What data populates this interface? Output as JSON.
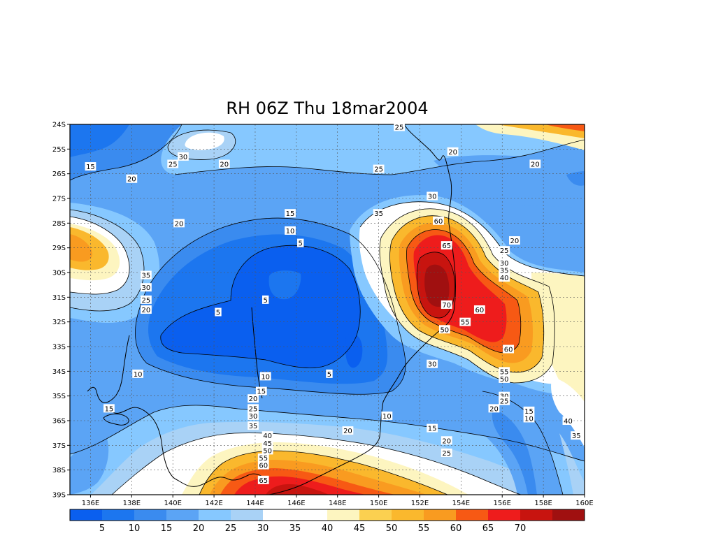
{
  "title": "RH 06Z Thu 18mar2004",
  "map": {
    "lat_ticks": [
      "24S",
      "25S",
      "26S",
      "27S",
      "28S",
      "29S",
      "30S",
      "31S",
      "32S",
      "33S",
      "34S",
      "35S",
      "36S",
      "37S",
      "38S",
      "39S"
    ],
    "lon_ticks": [
      "136E",
      "138E",
      "140E",
      "142E",
      "144E",
      "146E",
      "148E",
      "150E",
      "152E",
      "154E",
      "156E",
      "158E",
      "160E"
    ],
    "lon_range": [
      135,
      160
    ],
    "lat_range": [
      -24,
      -39
    ],
    "grid": true,
    "contour_labels": [
      {
        "text": "25",
        "lon": 151,
        "lat": -24.1
      },
      {
        "text": "20",
        "lon": 153.6,
        "lat": -25.1
      },
      {
        "text": "20",
        "lon": 157.6,
        "lat": -25.6
      },
      {
        "text": "30",
        "lon": 140.5,
        "lat": -25.3
      },
      {
        "text": "25",
        "lon": 140,
        "lat": -25.6
      },
      {
        "text": "20",
        "lon": 142.5,
        "lat": -25.6
      },
      {
        "text": "15",
        "lon": 136,
        "lat": -25.7
      },
      {
        "text": "20",
        "lon": 138,
        "lat": -26.2
      },
      {
        "text": "25",
        "lon": 150,
        "lat": -25.8
      },
      {
        "text": "30",
        "lon": 152.6,
        "lat": -26.9
      },
      {
        "text": "35",
        "lon": 150,
        "lat": -27.6
      },
      {
        "text": "15",
        "lon": 145.7,
        "lat": -27.6
      },
      {
        "text": "20",
        "lon": 140.3,
        "lat": -28.0
      },
      {
        "text": "10",
        "lon": 145.7,
        "lat": -28.3
      },
      {
        "text": "5",
        "lon": 146.2,
        "lat": -28.8
      },
      {
        "text": "60",
        "lon": 152.9,
        "lat": -27.9
      },
      {
        "text": "65",
        "lon": 153.3,
        "lat": -28.9
      },
      {
        "text": "20",
        "lon": 156.6,
        "lat": -28.7
      },
      {
        "text": "25",
        "lon": 156.1,
        "lat": -29.1
      },
      {
        "text": "30",
        "lon": 156.1,
        "lat": -29.6
      },
      {
        "text": "35",
        "lon": 156.1,
        "lat": -29.9
      },
      {
        "text": "40",
        "lon": 156.1,
        "lat": -30.2
      },
      {
        "text": "35",
        "lon": 138.7,
        "lat": -30.1
      },
      {
        "text": "30",
        "lon": 138.7,
        "lat": -30.6
      },
      {
        "text": "25",
        "lon": 138.7,
        "lat": -31.1
      },
      {
        "text": "20",
        "lon": 138.7,
        "lat": -31.5
      },
      {
        "text": "5",
        "lon": 142.2,
        "lat": -31.6
      },
      {
        "text": "5",
        "lon": 144.5,
        "lat": -31.1
      },
      {
        "text": "70",
        "lon": 153.3,
        "lat": -31.3
      },
      {
        "text": "60",
        "lon": 154.9,
        "lat": -31.5
      },
      {
        "text": "55",
        "lon": 154.2,
        "lat": -32.0
      },
      {
        "text": "50",
        "lon": 153.2,
        "lat": -32.3
      },
      {
        "text": "60",
        "lon": 156.3,
        "lat": -33.1
      },
      {
        "text": "30",
        "lon": 152.6,
        "lat": -33.7
      },
      {
        "text": "10",
        "lon": 138.3,
        "lat": -34.1
      },
      {
        "text": "10",
        "lon": 144.5,
        "lat": -34.2
      },
      {
        "text": "5",
        "lon": 147.6,
        "lat": -34.1
      },
      {
        "text": "55",
        "lon": 156.1,
        "lat": -34.0
      },
      {
        "text": "50",
        "lon": 156.1,
        "lat": -34.3
      },
      {
        "text": "15",
        "lon": 144.3,
        "lat": -34.8
      },
      {
        "text": "20",
        "lon": 143.9,
        "lat": -35.1
      },
      {
        "text": "25",
        "lon": 143.9,
        "lat": -35.5
      },
      {
        "text": "30",
        "lon": 156.1,
        "lat": -35.0
      },
      {
        "text": "25",
        "lon": 156.1,
        "lat": -35.2
      },
      {
        "text": "20",
        "lon": 155.6,
        "lat": -35.5
      },
      {
        "text": "15",
        "lon": 157.3,
        "lat": -35.6
      },
      {
        "text": "10",
        "lon": 157.3,
        "lat": -35.9
      },
      {
        "text": "15",
        "lon": 136.9,
        "lat": -35.5
      },
      {
        "text": "10",
        "lon": 150.4,
        "lat": -35.8
      },
      {
        "text": "40",
        "lon": 159.2,
        "lat": -36.0
      },
      {
        "text": "35",
        "lon": 159.6,
        "lat": -36.6
      },
      {
        "text": "30",
        "lon": 143.9,
        "lat": -35.8
      },
      {
        "text": "35",
        "lon": 143.9,
        "lat": -36.2
      },
      {
        "text": "20",
        "lon": 148.5,
        "lat": -36.4
      },
      {
        "text": "15",
        "lon": 152.6,
        "lat": -36.3
      },
      {
        "text": "20",
        "lon": 153.3,
        "lat": -36.8
      },
      {
        "text": "25",
        "lon": 153.3,
        "lat": -37.3
      },
      {
        "text": "40",
        "lon": 144.6,
        "lat": -36.6
      },
      {
        "text": "45",
        "lon": 144.6,
        "lat": -36.9
      },
      {
        "text": "50",
        "lon": 144.6,
        "lat": -37.2
      },
      {
        "text": "55",
        "lon": 144.4,
        "lat": -37.5
      },
      {
        "text": "60",
        "lon": 144.4,
        "lat": -37.8
      },
      {
        "text": "65",
        "lon": 144.4,
        "lat": -38.4
      }
    ]
  },
  "colorbar": {
    "colors": [
      "#0a5fef",
      "#1c76ef",
      "#3a8bef",
      "#5ba4f5",
      "#86c8ff",
      "#a9d2f6",
      "#ffffff",
      "#ffffff",
      "#fdf5c0",
      "#fbd050",
      "#fab82d",
      "#f99b20",
      "#f75914",
      "#ee1c1c",
      "#c8140f",
      "#a01010"
    ],
    "labels": [
      "5",
      "10",
      "15",
      "20",
      "25",
      "30",
      "35",
      "40",
      "45",
      "50",
      "55",
      "60",
      "65",
      "70"
    ]
  }
}
